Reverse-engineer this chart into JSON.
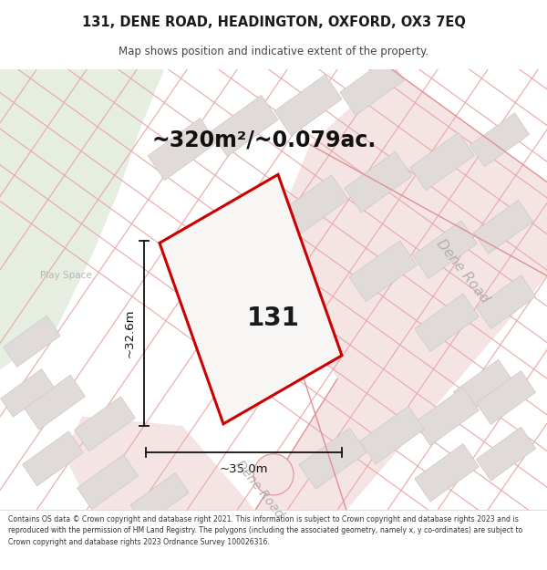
{
  "title_line1": "131, DENE ROAD, HEADINGTON, OXFORD, OX3 7EQ",
  "title_line2": "Map shows position and indicative extent of the property.",
  "area_text": "~320m²/~0.079ac.",
  "property_number": "131",
  "dim_width": "~35.0m",
  "dim_height": "~32.6m",
  "play_space_label": "Play Space",
  "road_label_right": "Dene Road",
  "road_label_bottom": "Dene Road",
  "footer_text": "Contains OS data © Crown copyright and database right 2021. This information is subject to Crown copyright and database rights 2023 and is reproduced with the permission of HM Land Registry. The polygons (including the associated geometry, namely x, y co-ordinates) are subject to Crown copyright and database rights 2023 Ordnance Survey 100026316.",
  "map_bg": "#f2f0ed",
  "green_color": "#e6ede1",
  "block_fc": "#e0dbd8",
  "block_ec": "#cdc8c4",
  "road_fc": "#f5e4e4",
  "road_ec": "#e8b8b8",
  "prop_fc": "#f8f6f4",
  "prop_ec": "#cc0000",
  "dim_color": "#111111",
  "text_dark": "#1a1a1a",
  "text_gray": "#b0b0b0",
  "road_line_color": "#e8a8a8",
  "title_sep_color": "#dddddd",
  "footer_sep_color": "#dddddd"
}
